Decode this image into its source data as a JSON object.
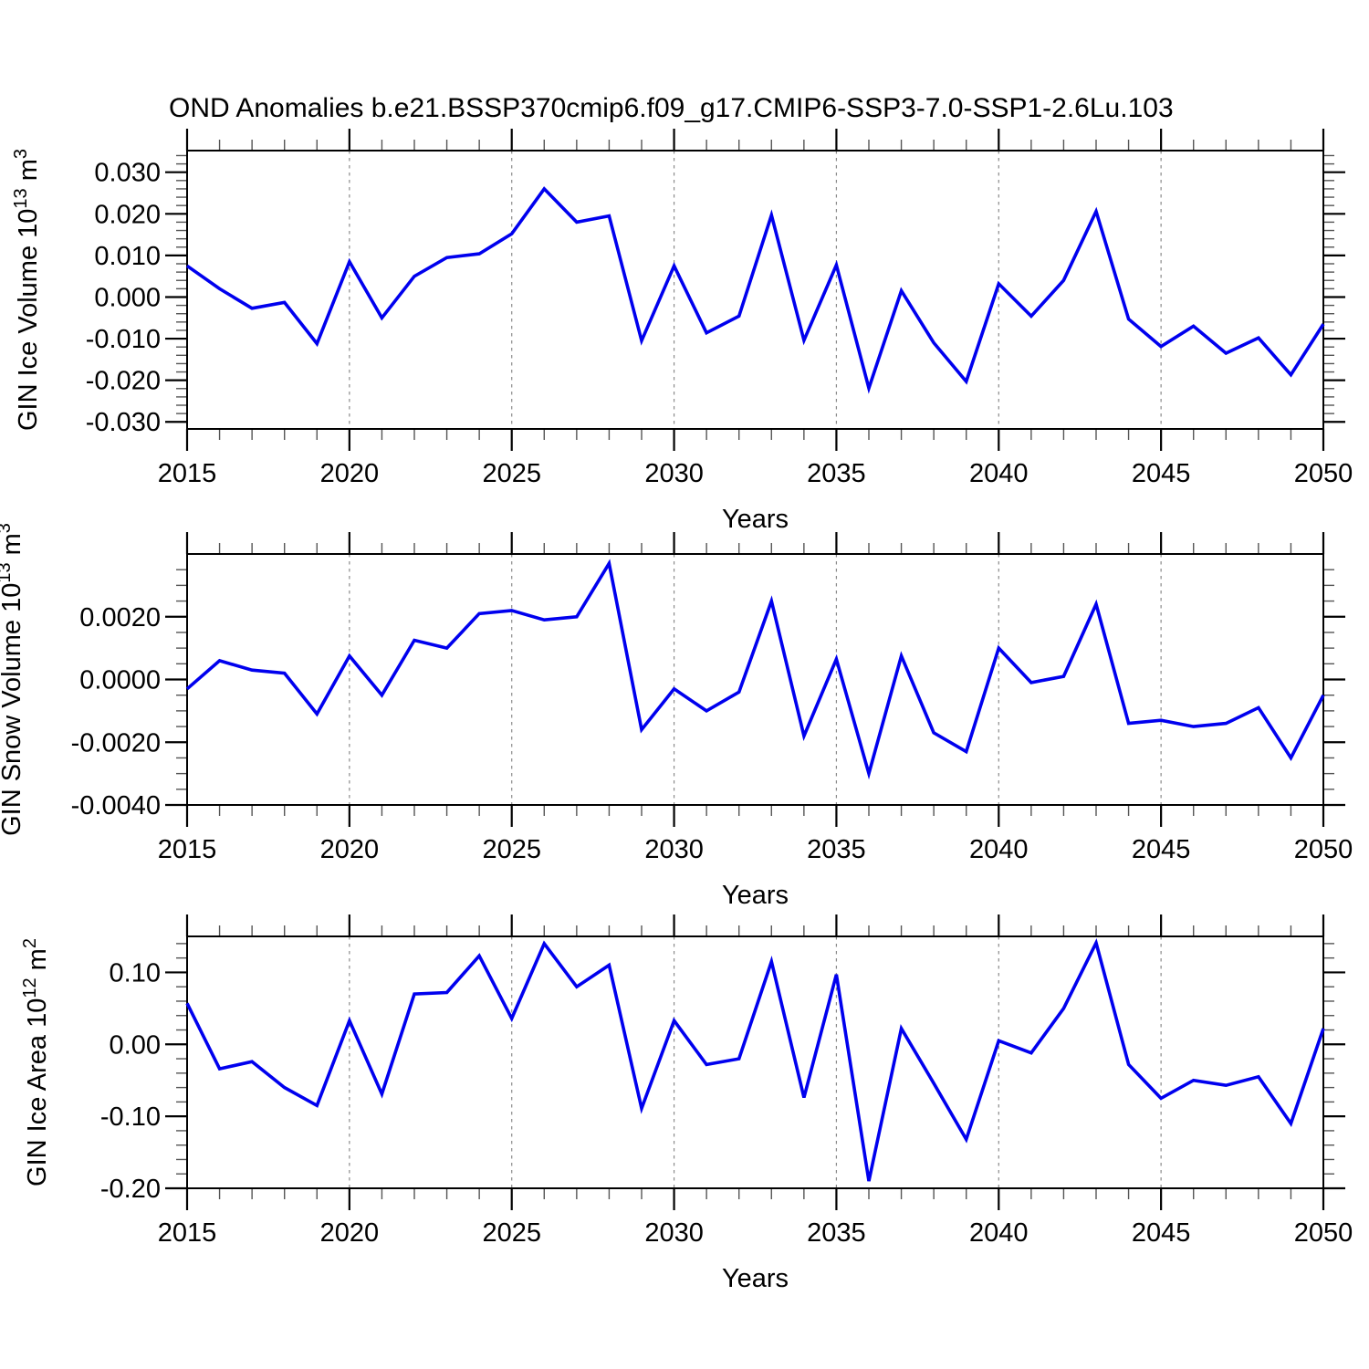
{
  "title": "OND Anomalies b.e21.BSSP370cmip6.f09_g17.CMIP6-SSP3-7.0-SSP1-2.6Lu.103",
  "colors": {
    "line": "#0000ee",
    "axis": "#000000",
    "minor_tick": "#555555",
    "grid": "#8a8a8a",
    "background": "#ffffff"
  },
  "x_axis": {
    "label": "Years",
    "start": 2015,
    "end": 2050,
    "tick_labels": [
      "2015",
      "2020",
      "2025",
      "2030",
      "2035",
      "2040",
      "2045",
      "2050"
    ],
    "gridline_years": [
      2020,
      2025,
      2030,
      2035,
      2040,
      2045
    ],
    "minor_tick_every": 1
  },
  "years": [
    2015,
    2016,
    2017,
    2018,
    2019,
    2020,
    2021,
    2022,
    2023,
    2024,
    2025,
    2026,
    2027,
    2028,
    2029,
    2030,
    2031,
    2032,
    2033,
    2034,
    2035,
    2036,
    2037,
    2038,
    2039,
    2040,
    2041,
    2042,
    2043,
    2044,
    2045,
    2046,
    2047,
    2048,
    2049,
    2050
  ],
  "chart_data": [
    {
      "type": "line",
      "name": "gin-ice-volume",
      "ylabel": "GIN Ice Volume 10^13 m^3",
      "ylabel_parts": [
        [
          "GIN Ice Volume 10",
          false
        ],
        [
          "13",
          true
        ],
        [
          " m",
          false
        ],
        [
          "3",
          true
        ]
      ],
      "xlabel": "Years",
      "ylim": [
        -0.0317,
        0.0352
      ],
      "yticks": [
        0.03,
        0.02,
        0.01,
        0.0,
        -0.01,
        -0.02,
        -0.03
      ],
      "ytick_labels": [
        "0.030",
        "0.020",
        "0.010",
        "0.000",
        "-0.010",
        "-0.020",
        "-0.030"
      ],
      "minor_y_step": 0.002,
      "values": [
        0.0075,
        0.002,
        -0.0027,
        -0.0013,
        -0.0112,
        0.0085,
        -0.005,
        0.005,
        0.0095,
        0.0104,
        0.0152,
        0.026,
        0.018,
        0.0195,
        -0.0105,
        0.0075,
        -0.0086,
        -0.0046,
        0.0197,
        -0.0104,
        0.0077,
        -0.0219,
        0.0015,
        -0.011,
        -0.0203,
        0.0032,
        -0.0046,
        0.004,
        0.0206,
        -0.0053,
        -0.0119,
        -0.007,
        -0.0135,
        -0.0098,
        -0.0187,
        -0.0065
      ]
    },
    {
      "type": "line",
      "name": "gin-snow-volume",
      "ylabel": "GIN Snow Volume 10^13 m^3",
      "ylabel_parts": [
        [
          "GIN Snow Volume 10",
          false
        ],
        [
          "13",
          true
        ],
        [
          " m",
          false
        ],
        [
          "3",
          true
        ]
      ],
      "xlabel": "Years",
      "ylim": [
        -0.004,
        0.004
      ],
      "yticks": [
        0.002,
        0.0,
        -0.002,
        -0.004
      ],
      "ytick_labels": [
        "0.0020",
        "0.0000",
        "-0.0020",
        "-0.0040"
      ],
      "minor_y_step": 0.0005,
      "values": [
        -0.0003,
        0.0006,
        0.0003,
        0.0002,
        -0.0011,
        0.00075,
        -0.0005,
        0.00125,
        0.001,
        0.0021,
        0.0022,
        0.0019,
        0.002,
        0.0037,
        -0.0016,
        -0.0003,
        -0.001,
        -0.0004,
        0.0025,
        -0.0018,
        0.00065,
        -0.003,
        0.00075,
        -0.0017,
        -0.0023,
        0.001,
        -0.0001,
        0.0001,
        0.0024,
        -0.0014,
        -0.0013,
        -0.0015,
        -0.0014,
        -0.0009,
        -0.0025,
        -0.0005
      ]
    },
    {
      "type": "line",
      "name": "gin-ice-area",
      "ylabel": "GIN Ice Area 10^12 m^2",
      "ylabel_parts": [
        [
          "GIN Ice Area 10",
          false
        ],
        [
          "12",
          true
        ],
        [
          " m",
          false
        ],
        [
          "2",
          true
        ]
      ],
      "xlabel": "Years",
      "ylim": [
        -0.2,
        0.15
      ],
      "yticks": [
        0.1,
        0.0,
        -0.1,
        -0.2
      ],
      "ytick_labels": [
        "0.10",
        "0.00",
        "-0.10",
        "-0.20"
      ],
      "minor_y_step": 0.02,
      "values": [
        0.057,
        -0.034,
        -0.024,
        -0.06,
        -0.085,
        0.033,
        -0.069,
        0.07,
        0.072,
        0.123,
        0.036,
        0.14,
        0.08,
        0.11,
        -0.089,
        0.033,
        -0.028,
        -0.02,
        0.115,
        -0.074,
        0.097,
        -0.19,
        0.022,
        -0.054,
        -0.132,
        0.005,
        -0.012,
        0.05,
        0.141,
        -0.028,
        -0.075,
        -0.05,
        -0.057,
        -0.045,
        -0.11,
        0.022
      ]
    }
  ]
}
